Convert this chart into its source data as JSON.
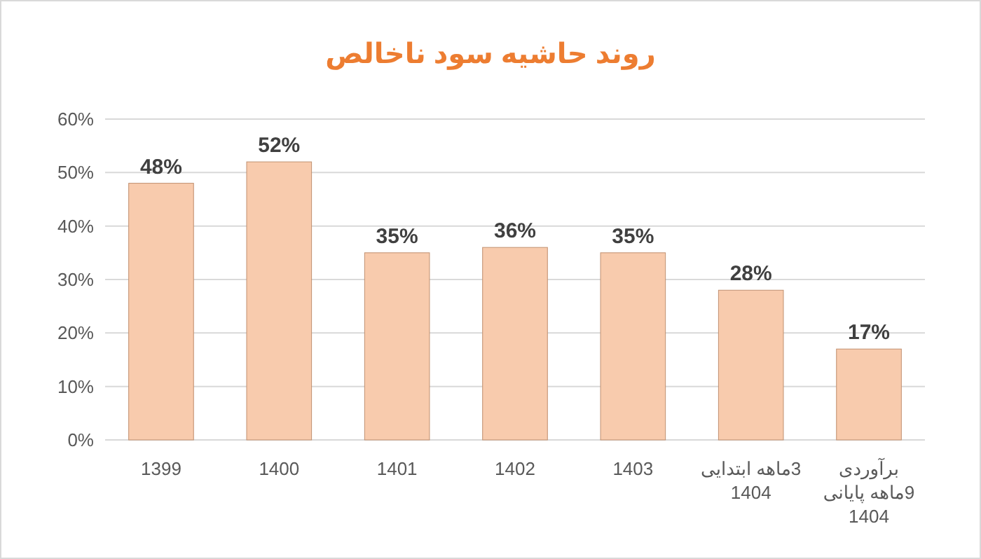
{
  "chart_data": {
    "type": "bar",
    "title": "روند حاشیه سود ناخالص",
    "categories": [
      "1399",
      "1400",
      "1401",
      "1402",
      "1403",
      "3ماهه ابتدایی\n1404",
      "برآوردی\n9ماهه پایانی\n1404"
    ],
    "values": [
      48,
      52,
      35,
      36,
      35,
      28,
      17
    ],
    "value_labels": [
      "48%",
      "52%",
      "35%",
      "36%",
      "35%",
      "28%",
      "17%"
    ],
    "color": "#f8cbad",
    "ylim": [
      0,
      60
    ],
    "yticks": [
      {
        "value": 0,
        "label": "0%"
      },
      {
        "value": 10,
        "label": "10%"
      },
      {
        "value": 20,
        "label": "20%"
      },
      {
        "value": 30,
        "label": "30%"
      },
      {
        "value": 40,
        "label": "40%"
      },
      {
        "value": 50,
        "label": "50%"
      },
      {
        "value": 60,
        "label": "60%"
      }
    ],
    "grid": "y"
  }
}
